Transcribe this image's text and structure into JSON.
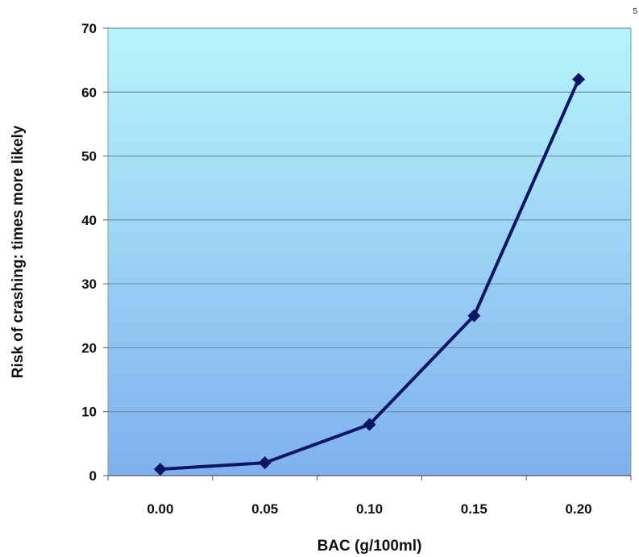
{
  "page_marker": "5",
  "chart_data": {
    "type": "line",
    "title": "",
    "xlabel": "BAC (g/100ml)",
    "ylabel": "Risk of crashing: times more likely",
    "categories": [
      "0.00",
      "0.05",
      "0.10",
      "0.15",
      "0.20"
    ],
    "series": [
      {
        "values": [
          1,
          2,
          8,
          25,
          62
        ]
      }
    ],
    "ylim": [
      0,
      70
    ],
    "yticks": [
      0,
      10,
      20,
      30,
      40,
      50,
      60,
      70
    ],
    "grid": "horizontal",
    "legend": "none",
    "marker": "diamond",
    "colors": {
      "line": "#0d1566",
      "plot_top": "#b6f5fb",
      "plot_bottom": "#7fb0ee",
      "grid": "#6f8fa8",
      "frame": "#8a9aa8"
    }
  }
}
